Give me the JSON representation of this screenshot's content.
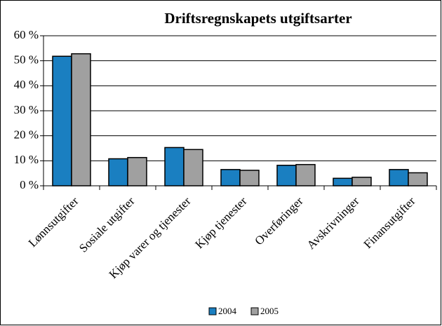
{
  "chart_data": {
    "type": "bar",
    "title": "Driftsregnskapets utgiftsarter",
    "categories": [
      "Lønnsutgifter",
      "Sosiale utgifter",
      "Kjøp varer og tjenester",
      "Kjøp tjenester",
      "Overføringer",
      "Avskrivninger",
      "Finansutgifter"
    ],
    "series": [
      {
        "name": "2004",
        "color": "#1a7fc1",
        "values": [
          51.8,
          10.8,
          15.3,
          6.5,
          8.2,
          3.0,
          6.5
        ]
      },
      {
        "name": "2005",
        "color": "#a0a0a0",
        "values": [
          52.8,
          11.3,
          14.5,
          6.2,
          8.5,
          3.4,
          5.2
        ]
      }
    ],
    "ylim": [
      0,
      60
    ],
    "yticks": [
      {
        "value": 0,
        "label": "0 %"
      },
      {
        "value": 10,
        "label": "10 %"
      },
      {
        "value": 20,
        "label": "20 %"
      },
      {
        "value": 30,
        "label": "30 %"
      },
      {
        "value": 40,
        "label": "40 %"
      },
      {
        "value": 50,
        "label": "50 %"
      },
      {
        "value": 60,
        "label": "60 %"
      }
    ],
    "grid": true,
    "legend": "bottom"
  }
}
